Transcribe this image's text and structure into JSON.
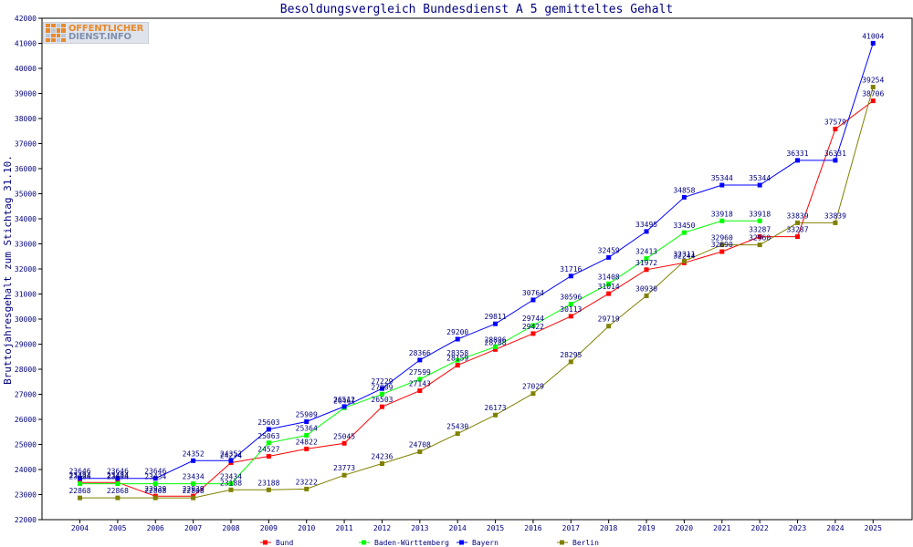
{
  "chart_data": {
    "type": "line",
    "title": "Besoldungsvergleich Bundesdienst A 5 gemitteltes Gehalt",
    "ylabel": "Bruttojahresgehalt zum Stichtag 31.10.",
    "xlabel": "",
    "x": [
      "2004",
      "2005",
      "2006",
      "2007",
      "2008",
      "2009",
      "2010",
      "2011",
      "2012",
      "2013",
      "2014",
      "2015",
      "2016",
      "2017",
      "2018",
      "2019",
      "2020",
      "2021",
      "2022",
      "2023",
      "2024",
      "2025"
    ],
    "ylim": [
      22000,
      42000
    ],
    "yticks": [
      22000,
      23000,
      24000,
      25000,
      26000,
      27000,
      28000,
      29000,
      30000,
      31000,
      32000,
      33000,
      34000,
      35000,
      36000,
      37000,
      38000,
      39000,
      40000,
      41000,
      42000
    ],
    "grid": false,
    "legend_position": "bottom",
    "series": [
      {
        "name": "Bund",
        "color": "#ff0000",
        "values": [
          23484,
          23484,
          22939,
          22939,
          24274,
          24527,
          24822,
          25045,
          26503,
          27143,
          28159,
          28788,
          29422,
          30113,
          31014,
          31972,
          32244,
          32690,
          33287,
          33287,
          37579,
          38706
        ]
      },
      {
        "name": "Baden-Württemberg",
        "color": "#00ff00",
        "values": [
          23434,
          23434,
          23434,
          23434,
          23434,
          25063,
          25364,
          26461,
          27009,
          27599,
          28358,
          28896,
          29744,
          30596,
          31408,
          32413,
          33450,
          33918,
          33918,
          null,
          null,
          null
        ]
      },
      {
        "name": "Bayern",
        "color": "#0000ff",
        "values": [
          23646,
          23646,
          23646,
          24352,
          24352,
          25603,
          25909,
          26512,
          27229,
          28366,
          29200,
          29811,
          30764,
          31716,
          32459,
          33495,
          34858,
          35344,
          35344,
          36331,
          36331,
          41004
        ]
      },
      {
        "name": "Berlin",
        "color": "#808000",
        "values": [
          22868,
          22868,
          22868,
          22868,
          23188,
          23188,
          23222,
          23773,
          24236,
          24708,
          25430,
          26173,
          27029,
          28295,
          29719,
          30930,
          32311,
          32960,
          32960,
          33839,
          33839,
          39254
        ]
      }
    ]
  },
  "logo": {
    "line1": "OFFENTLICHER",
    "line2": "DIENST.INFO"
  }
}
